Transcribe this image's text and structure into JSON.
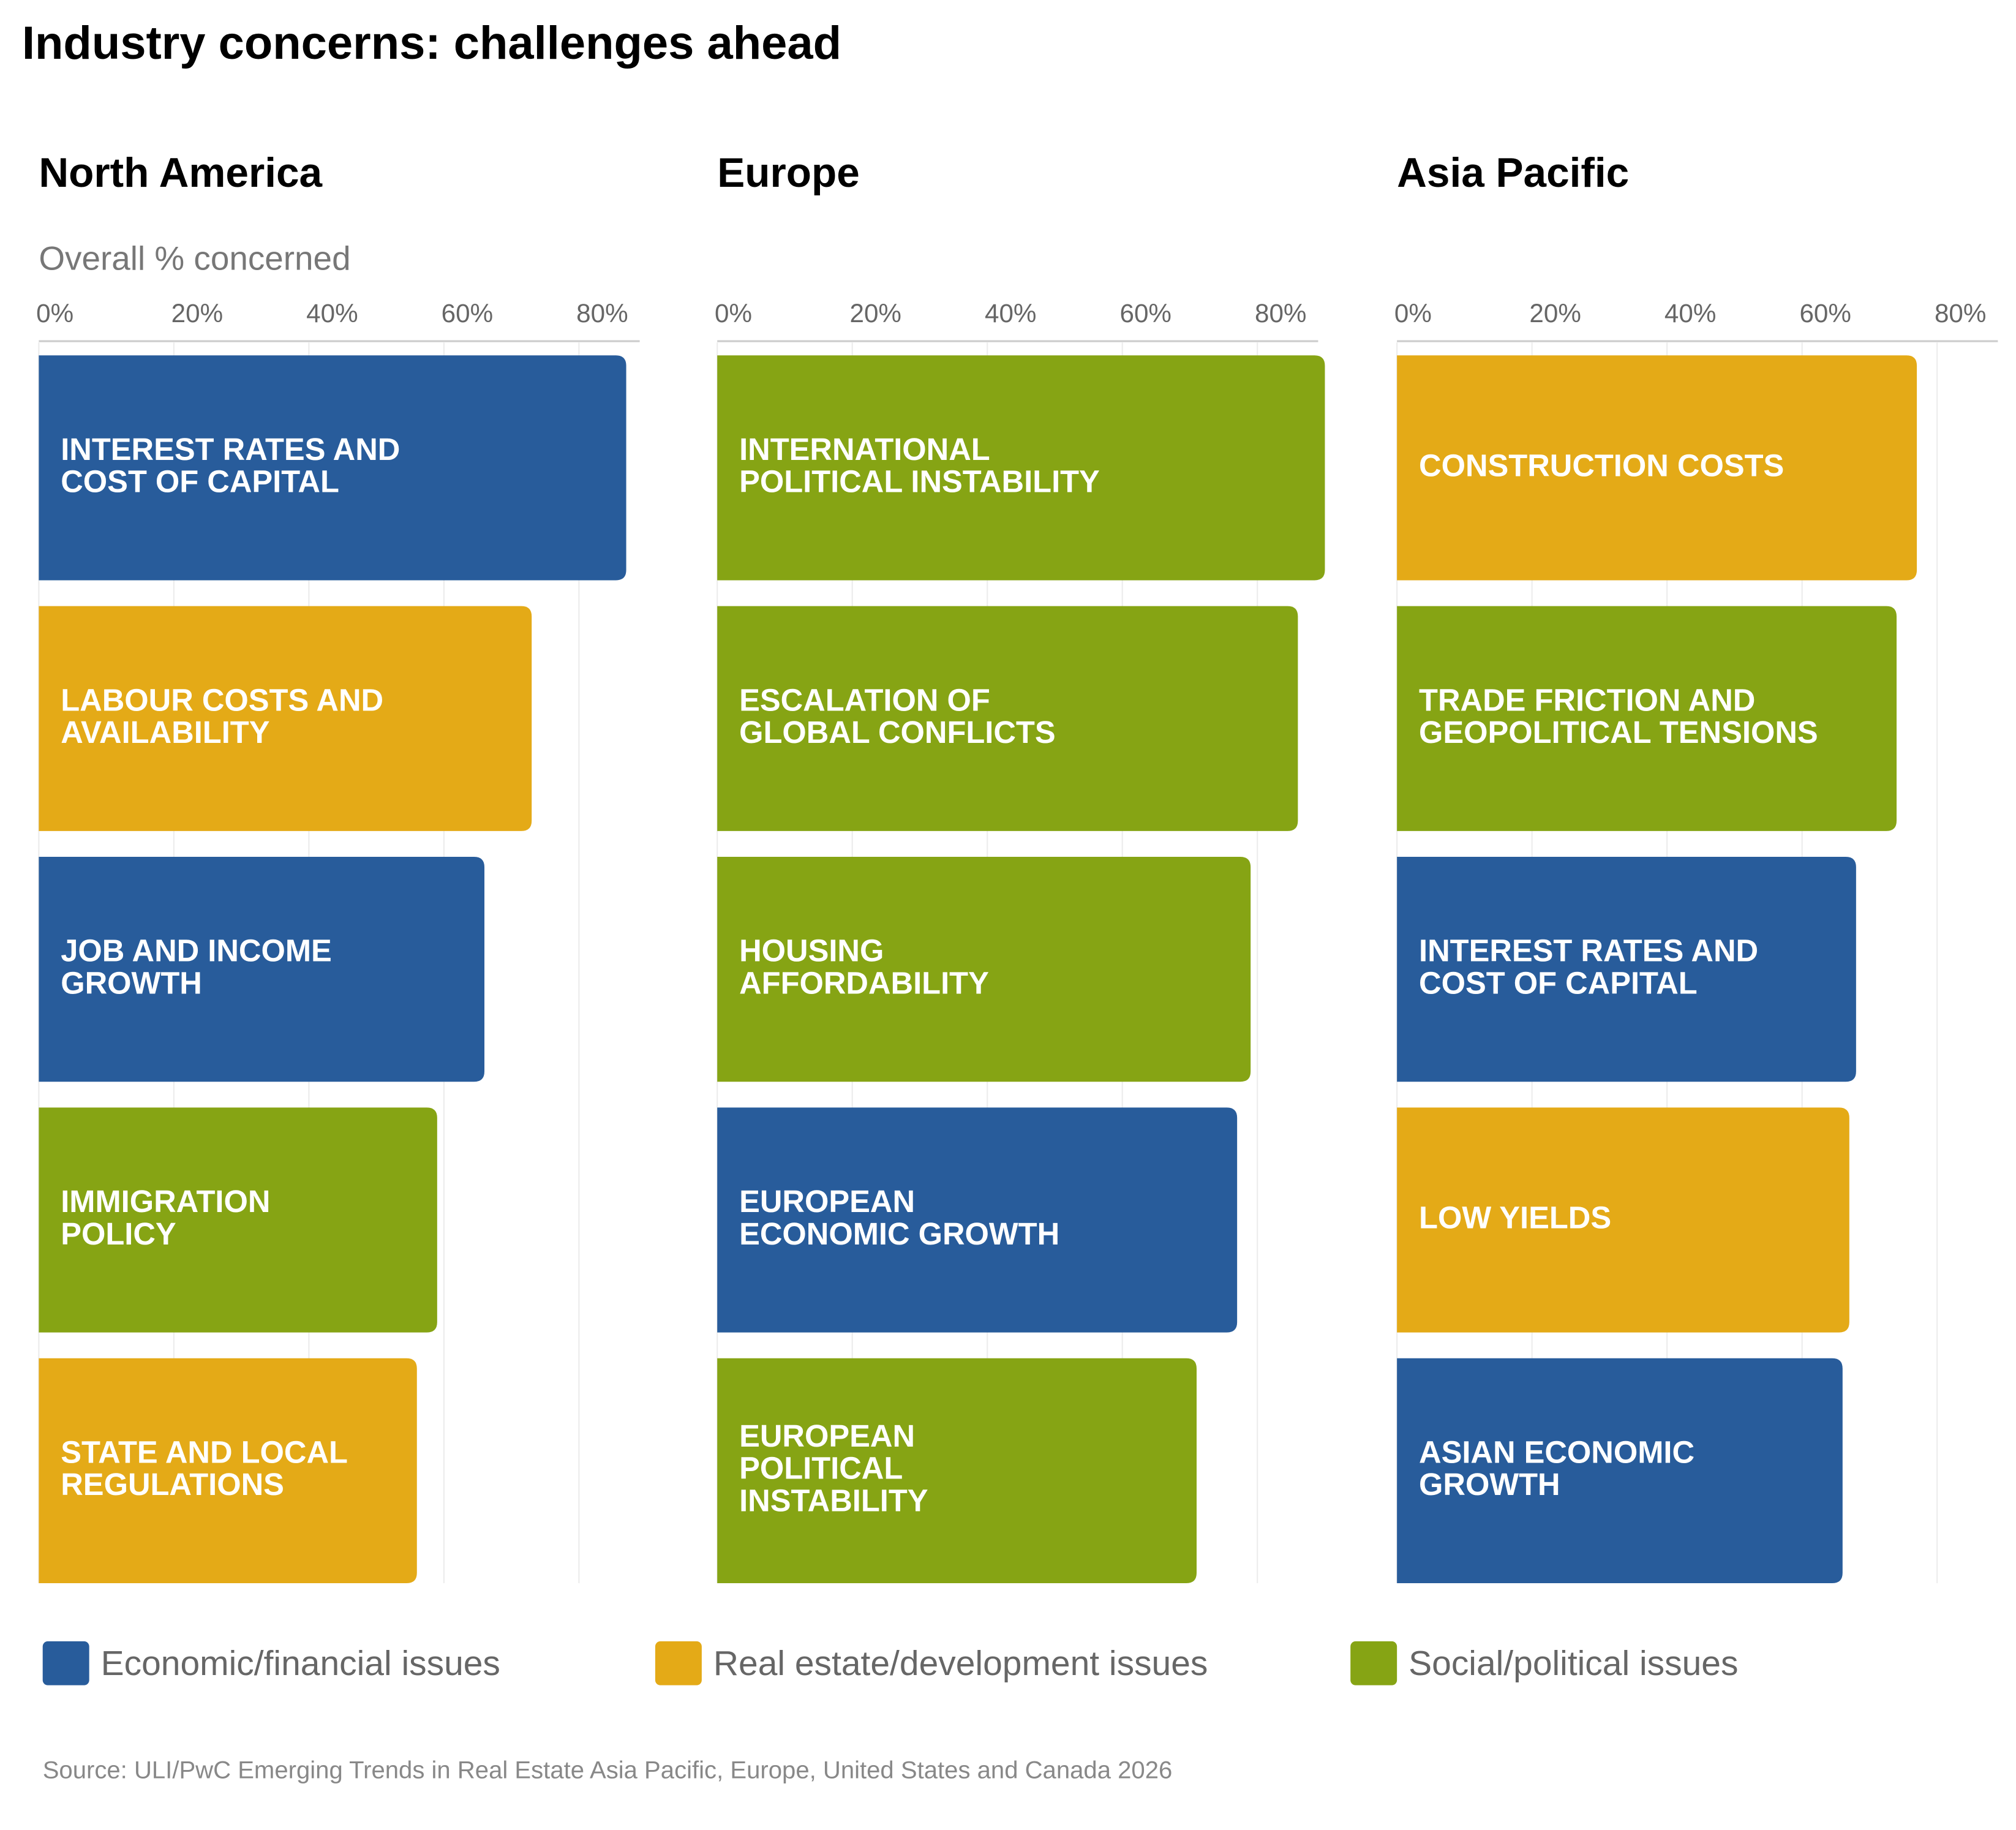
{
  "title": "Industry concerns: challenges ahead",
  "source": "Source: ULI/PwC Emerging Trends in Real Estate Asia Pacific, Europe, United States and Canada 2026",
  "legend": [
    {
      "name": "Economic/financial issues",
      "color": "#285c9b"
    },
    {
      "name": "Real estate/development issues",
      "color": "#e4aa17"
    },
    {
      "name": "Social/political issues",
      "color": "#86a414"
    }
  ],
  "chart_data": [
    {
      "type": "bar",
      "orientation": "horizontal",
      "title": "North America",
      "subtitle": "Overall % concerned",
      "categories": [
        [
          "INTEREST RATES AND",
          "COST OF CAPITAL"
        ],
        [
          "LABOUR COSTS AND",
          "AVAILABILITY"
        ],
        [
          "JOB AND INCOME",
          "GROWTH"
        ],
        [
          "IMMIGRATION",
          "POLICY"
        ],
        [
          "STATE AND LOCAL",
          "REGULATIONS"
        ]
      ],
      "values": [
        87,
        73,
        66,
        59,
        56
      ],
      "colors": [
        "#285c9b",
        "#e4aa17",
        "#285c9b",
        "#86a414",
        "#e4aa17"
      ],
      "xlim": [
        0,
        89
      ],
      "xticks": [
        {
          "value": 0,
          "label": "0%"
        },
        {
          "value": 20,
          "label": "20%"
        },
        {
          "value": 40,
          "label": "40%"
        },
        {
          "value": 60,
          "label": "60%"
        },
        {
          "value": 80,
          "label": "80%"
        }
      ],
      "grid": true
    },
    {
      "type": "bar",
      "orientation": "horizontal",
      "title": "Europe",
      "categories": [
        [
          "INTERNATIONAL",
          "POLITICAL INSTABILITY"
        ],
        [
          "ESCALATION OF",
          "GLOBAL CONFLICTS"
        ],
        [
          "HOUSING",
          "AFFORDABILITY"
        ],
        [
          "EUROPEAN",
          "ECONOMIC GROWTH"
        ],
        [
          "EUROPEAN",
          "POLITICAL",
          "INSTABILITY"
        ]
      ],
      "values": [
        90,
        86,
        79,
        77,
        71
      ],
      "colors": [
        "#86a414",
        "#86a414",
        "#86a414",
        "#285c9b",
        "#86a414"
      ],
      "xlim": [
        0,
        89
      ],
      "xticks": [
        {
          "value": 0,
          "label": "0%"
        },
        {
          "value": 20,
          "label": "20%"
        },
        {
          "value": 40,
          "label": "40%"
        },
        {
          "value": 60,
          "label": "60%"
        },
        {
          "value": 80,
          "label": "80%"
        }
      ],
      "grid": true
    },
    {
      "type": "bar",
      "orientation": "horizontal",
      "title": "Asia Pacific",
      "categories": [
        [
          "CONSTRUCTION COSTS"
        ],
        [
          "TRADE FRICTION AND",
          "GEOPOLITICAL TENSIONS"
        ],
        [
          "INTEREST RATES AND",
          "COST OF CAPITAL"
        ],
        [
          "LOW YIELDS"
        ],
        [
          "ASIAN ECONOMIC",
          "GROWTH"
        ]
      ],
      "values": [
        77,
        74,
        68,
        67,
        66
      ],
      "colors": [
        "#e4aa17",
        "#86a414",
        "#285c9b",
        "#e4aa17",
        "#285c9b"
      ],
      "xlim": [
        0,
        89
      ],
      "xticks": [
        {
          "value": 0,
          "label": "0%"
        },
        {
          "value": 20,
          "label": "20%"
        },
        {
          "value": 40,
          "label": "40%"
        },
        {
          "value": 60,
          "label": "60%"
        },
        {
          "value": 80,
          "label": "80%"
        }
      ],
      "grid": true
    }
  ]
}
